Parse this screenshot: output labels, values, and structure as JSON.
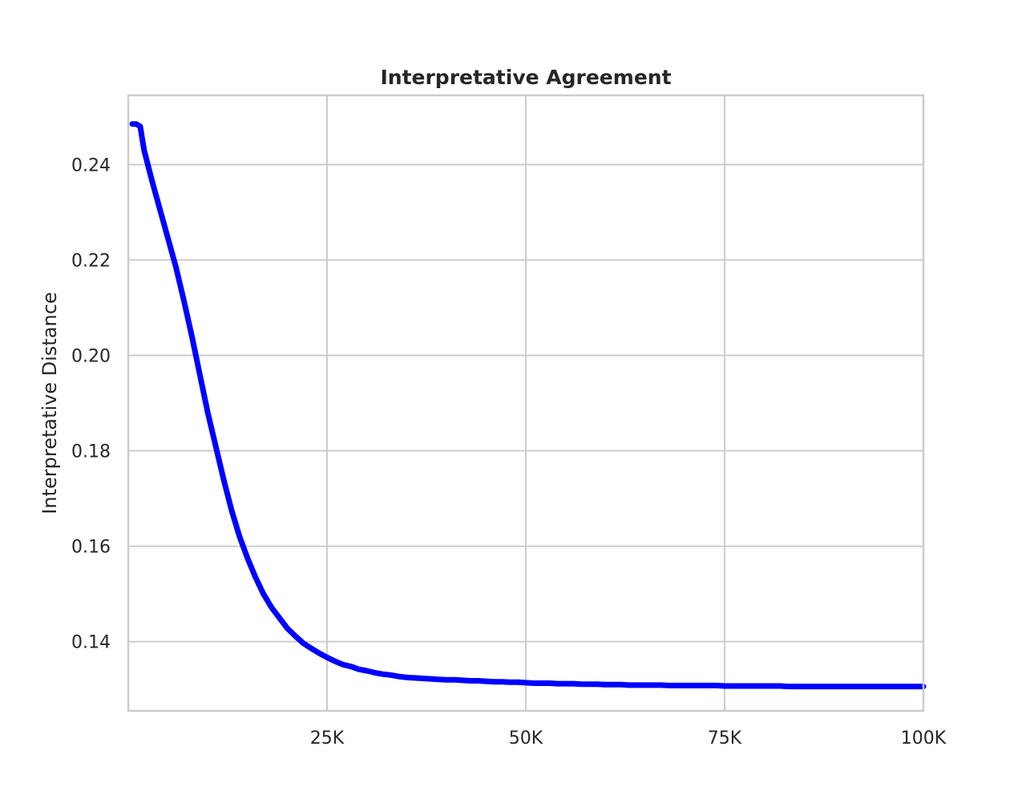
{
  "chart_data": {
    "type": "line",
    "title": "Interpretative Agreement",
    "xlabel": "",
    "ylabel": "Interpretative Distance",
    "xlim": [
      0,
      100000
    ],
    "ylim": [
      0.1255,
      0.2545
    ],
    "grid": true,
    "x_ticks": [
      {
        "value": 25000,
        "label": "25K"
      },
      {
        "value": 50000,
        "label": "50K"
      },
      {
        "value": 75000,
        "label": "75K"
      },
      {
        "value": 100000,
        "label": "100K"
      }
    ],
    "y_ticks": [
      {
        "value": 0.14,
        "label": "0.14"
      },
      {
        "value": 0.16,
        "label": "0.16"
      },
      {
        "value": 0.18,
        "label": "0.18"
      },
      {
        "value": 0.2,
        "label": "0.20"
      },
      {
        "value": 0.22,
        "label": "0.22"
      },
      {
        "value": 0.24,
        "label": "0.24"
      }
    ],
    "series": [
      {
        "color": "#0000ff",
        "x": [
          500,
          1000,
          1500,
          2000,
          3000,
          4000,
          5000,
          6000,
          7000,
          8000,
          9000,
          10000,
          11000,
          12000,
          13000,
          14000,
          15000,
          16000,
          17000,
          18000,
          19000,
          20000,
          21000,
          22000,
          23000,
          24000,
          25000,
          26000,
          27000,
          28000,
          29000,
          30000,
          31000,
          32000,
          33000,
          34000,
          35000,
          36000,
          37000,
          38000,
          39000,
          40000,
          41000,
          42000,
          43000,
          44000,
          45000,
          46000,
          47000,
          48000,
          49000,
          50000,
          51000,
          52000,
          53000,
          54000,
          55000,
          56000,
          57000,
          58000,
          59000,
          60000,
          61000,
          62000,
          63000,
          64000,
          65000,
          66000,
          67000,
          68000,
          69000,
          70000,
          71000,
          72000,
          73000,
          74000,
          75000,
          76000,
          77000,
          78000,
          79000,
          80000,
          81000,
          82000,
          83000,
          84000,
          85000,
          86000,
          87000,
          88000,
          89000,
          90000,
          91000,
          92000,
          93000,
          94000,
          95000,
          96000,
          97000,
          98000,
          99000,
          100000
        ],
        "y": [
          0.2485,
          0.2485,
          0.248,
          0.243,
          0.2365,
          0.2305,
          0.2245,
          0.2185,
          0.2115,
          0.204,
          0.196,
          0.188,
          0.181,
          0.174,
          0.1675,
          0.162,
          0.1575,
          0.1535,
          0.15,
          0.1472,
          0.145,
          0.1428,
          0.1412,
          0.1397,
          0.1386,
          0.1376,
          0.1367,
          0.1359,
          0.1352,
          0.1348,
          0.1342,
          0.1339,
          0.1335,
          0.1332,
          0.133,
          0.1327,
          0.1325,
          0.1324,
          0.1323,
          0.1322,
          0.1321,
          0.132,
          0.132,
          0.1319,
          0.1318,
          0.1318,
          0.1317,
          0.1316,
          0.1316,
          0.1315,
          0.1315,
          0.1314,
          0.1313,
          0.1313,
          0.1313,
          0.1312,
          0.1312,
          0.1312,
          0.1311,
          0.1311,
          0.1311,
          0.131,
          0.131,
          0.131,
          0.1309,
          0.1309,
          0.1309,
          0.1309,
          0.1309,
          0.1308,
          0.1308,
          0.1308,
          0.1308,
          0.1308,
          0.1308,
          0.1308,
          0.1307,
          0.1307,
          0.1307,
          0.1307,
          0.1307,
          0.1307,
          0.1307,
          0.1307,
          0.1306,
          0.1306,
          0.1306,
          0.1306,
          0.1306,
          0.1306,
          0.1306,
          0.1306,
          0.1306,
          0.1306,
          0.1306,
          0.1306,
          0.1306,
          0.1306,
          0.1306,
          0.1306,
          0.1306,
          0.1306
        ]
      }
    ]
  }
}
